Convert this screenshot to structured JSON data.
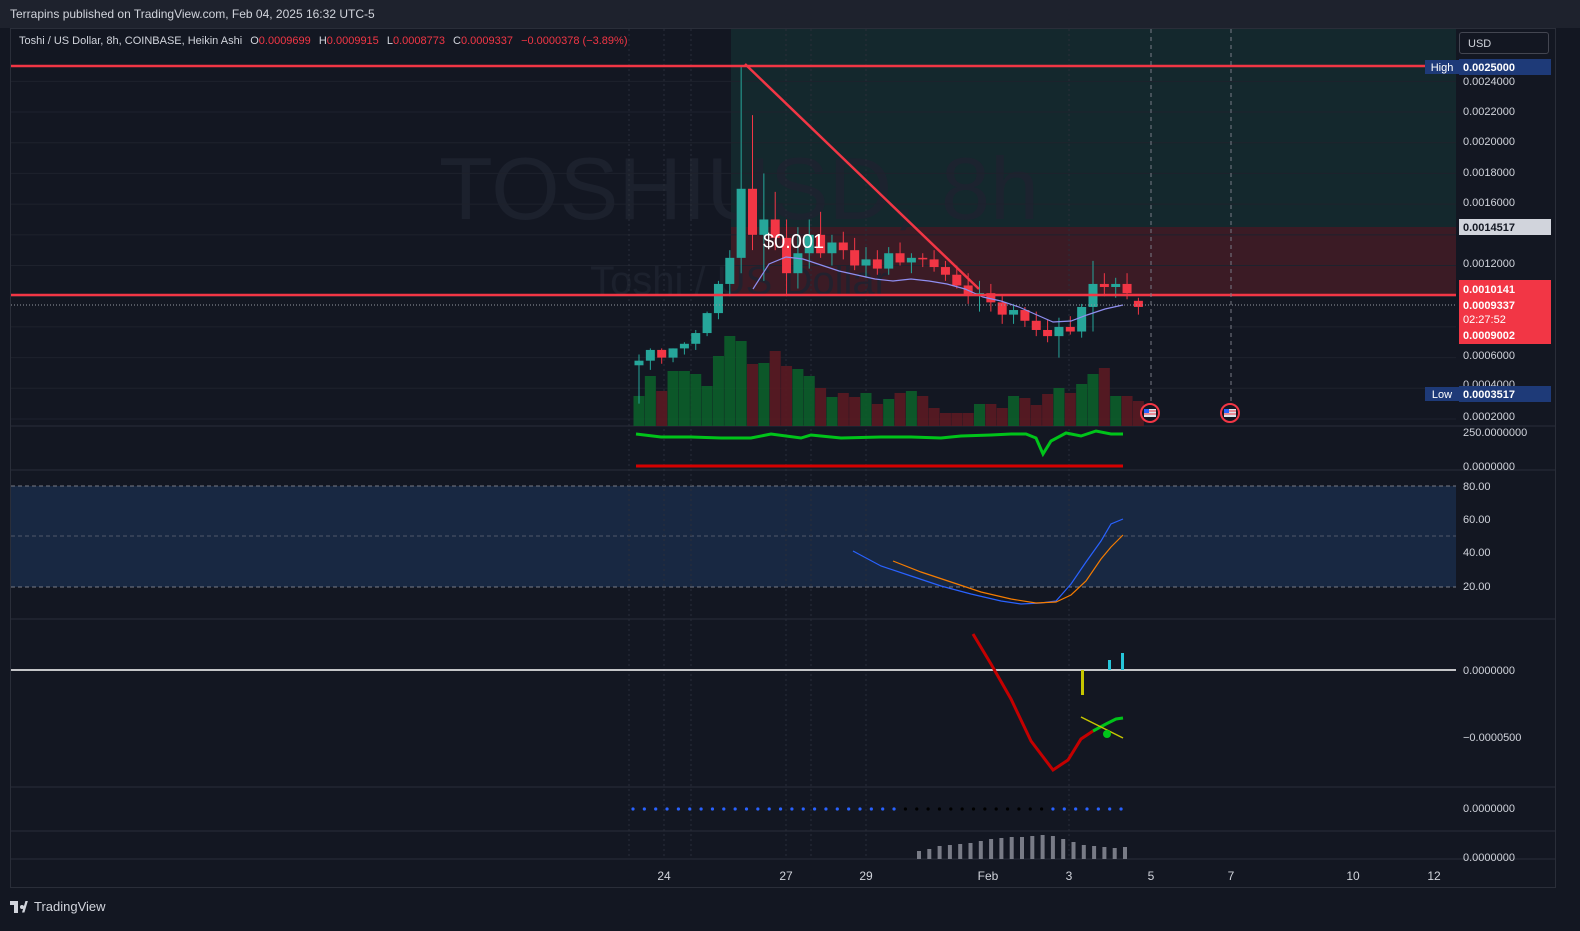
{
  "header": {
    "publisher": "Terrapins published on TradingView.com, Feb 04, 2025 16:32 UTC-5"
  },
  "footer": {
    "brand": "TradingView"
  },
  "legend": {
    "symbol": "Toshi / US Dollar, 8h, COINBASE, Heikin Ashi",
    "o_label": "O",
    "o": "0.0009699",
    "h_label": "H",
    "h": "0.0009915",
    "l_label": "L",
    "l": "0.0008773",
    "c_label": "C",
    "c": "0.0009337",
    "change": "−0.0000378 (−3.89%)"
  },
  "currency": "USD",
  "watermark": {
    "title": "TOSHIUSD, 8h",
    "subtitle": "Toshi / US Dollar"
  },
  "annotation": "$0.001",
  "colors": {
    "up": "#26a69a",
    "down": "#f23645",
    "hline": "#f23645",
    "watermark": "#2a2e39"
  },
  "price_axis": {
    "ticks": [
      "0.0024000",
      "0.0022000",
      "0.0020000",
      "0.0018000",
      "0.0016000",
      "0.0012000",
      "0.0006000",
      "0.0004000",
      "0.0002000"
    ],
    "high_label": "High",
    "high": "0.0025000",
    "low_label": "Low",
    "low": "0.0003517",
    "level_1": "0.0014517",
    "level_2": "0.0010141",
    "last_price": "0.0009337",
    "countdown": "02:27:52",
    "level_3": "0.0009002"
  },
  "time_axis": [
    "24",
    "27",
    "29",
    "Feb",
    "3",
    "5",
    "7",
    "10",
    "12"
  ],
  "pane_labels": {
    "vol_osc_top": "250.0000000",
    "vol_osc_bottom": "0.0000000",
    "rsi_80": "80.00",
    "rsi_60": "60.00",
    "rsi_40": "40.00",
    "rsi_20": "20.00",
    "macd_zero": "0.0000000",
    "macd_neg": "−0.0000500",
    "dots_zero": "0.0000000",
    "hist_zero": "0.0000000"
  },
  "chart_data": {
    "type": "candlestick",
    "style": "Heikin Ashi",
    "interval": "8h",
    "x_ticks": [
      "24",
      "27",
      "29",
      "Feb",
      "3",
      "5",
      "7",
      "10",
      "12"
    ],
    "y_range": [
      0.00015,
      0.00255
    ],
    "horizontal_lines": [
      0.0025,
      0.0010141
    ],
    "trendline": {
      "from": [
        "Jan 25 16:00",
        0.0025
      ],
      "to": [
        "Feb 1",
        0.00101
      ]
    },
    "zones": [
      {
        "kind": "profit",
        "top": 0.0025,
        "bottom": 0.0014517
      },
      {
        "kind": "loss",
        "top": 0.0014517,
        "bottom": 0.0010141
      }
    ],
    "candles": [
      [
        0.00055,
        0.00062,
        0.0003,
        0.00058
      ],
      [
        0.00058,
        0.00066,
        0.00052,
        0.00065
      ],
      [
        0.00065,
        0.00066,
        0.00056,
        0.0006
      ],
      [
        0.0006,
        0.00066,
        0.00057,
        0.00066
      ],
      [
        0.00066,
        0.0007,
        0.00062,
        0.00069
      ],
      [
        0.00069,
        0.00078,
        0.00065,
        0.00076
      ],
      [
        0.00076,
        0.0009,
        0.00074,
        0.00089
      ],
      [
        0.00089,
        0.0011,
        0.00085,
        0.00108
      ],
      [
        0.00108,
        0.0013,
        0.001,
        0.00125
      ],
      [
        0.00125,
        0.0025,
        0.00115,
        0.0017
      ],
      [
        0.0017,
        0.00218,
        0.0013,
        0.0014
      ],
      [
        0.0014,
        0.0018,
        0.0011,
        0.0015
      ],
      [
        0.0015,
        0.00168,
        0.0013,
        0.00138
      ],
      [
        0.00138,
        0.0015,
        0.001,
        0.00115
      ],
      [
        0.00115,
        0.00145,
        0.00105,
        0.00128
      ],
      [
        0.00128,
        0.0015,
        0.00118,
        0.0014
      ],
      [
        0.0014,
        0.00155,
        0.00125,
        0.00128
      ],
      [
        0.00128,
        0.0014,
        0.0012,
        0.00135
      ],
      [
        0.00135,
        0.00142,
        0.00124,
        0.0013
      ],
      [
        0.0013,
        0.00138,
        0.00117,
        0.0012
      ],
      [
        0.0012,
        0.00132,
        0.00112,
        0.00124
      ],
      [
        0.00124,
        0.0013,
        0.00114,
        0.00118
      ],
      [
        0.00118,
        0.00132,
        0.00114,
        0.00128
      ],
      [
        0.00128,
        0.00135,
        0.0012,
        0.00122
      ],
      [
        0.00122,
        0.00128,
        0.00115,
        0.00125
      ],
      [
        0.00125,
        0.00128,
        0.00119,
        0.00124
      ],
      [
        0.00124,
        0.0013,
        0.00116,
        0.00119
      ],
      [
        0.00119,
        0.00123,
        0.0011,
        0.00114
      ],
      [
        0.00114,
        0.0012,
        0.00105,
        0.00107
      ],
      [
        0.00107,
        0.00115,
        0.00095,
        0.00101
      ],
      [
        0.00101,
        0.0011,
        0.0009,
        0.00102
      ],
      [
        0.00102,
        0.00108,
        0.0009,
        0.00096
      ],
      [
        0.00096,
        0.001,
        0.00082,
        0.00088
      ],
      [
        0.00088,
        0.00095,
        0.00082,
        0.00091
      ],
      [
        0.00091,
        0.00093,
        0.0008,
        0.00084
      ],
      [
        0.00084,
        0.0009,
        0.00074,
        0.00078
      ],
      [
        0.00078,
        0.00085,
        0.0007,
        0.00074
      ],
      [
        0.00074,
        0.00086,
        0.0006,
        0.0008
      ],
      [
        0.0008,
        0.00087,
        0.00075,
        0.00077
      ],
      [
        0.00077,
        0.00095,
        0.00073,
        0.00093
      ],
      [
        0.00093,
        0.00123,
        0.00077,
        0.00108
      ],
      [
        0.00108,
        0.00115,
        0.001,
        0.00106
      ],
      [
        0.00106,
        0.00112,
        0.00099,
        0.00108
      ],
      [
        0.00108,
        0.00115,
        0.00098,
        0.00102
      ],
      [
        0.00097,
        0.00099,
        0.00088,
        0.00093
      ]
    ],
    "volume": [
      30,
      50,
      35,
      55,
      55,
      52,
      40,
      70,
      90,
      85,
      62,
      63,
      75,
      60,
      57,
      50,
      38,
      29,
      33,
      29,
      33,
      22,
      27,
      33,
      35,
      30,
      18,
      13,
      13,
      13,
      22,
      22,
      18,
      30,
      28,
      21,
      32,
      38,
      33,
      42,
      52,
      58,
      30,
      30,
      25
    ]
  }
}
